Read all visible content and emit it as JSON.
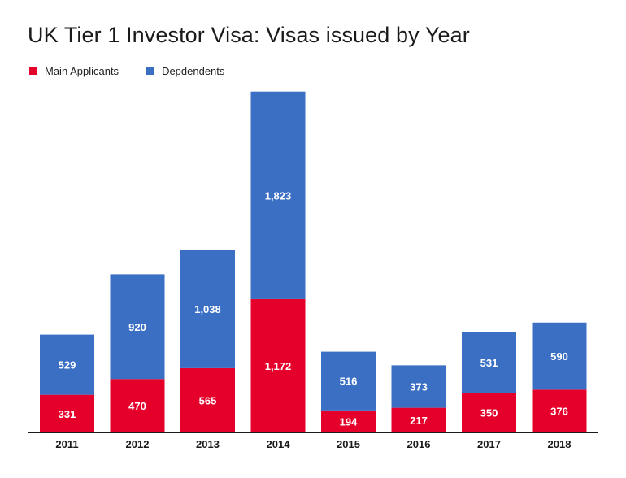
{
  "chart_data": {
    "type": "bar",
    "stacked": true,
    "title": "UK Tier 1 Investor Visa: Visas issued by Year",
    "categories": [
      "2011",
      "2012",
      "2013",
      "2014",
      "2015",
      "2016",
      "2017",
      "2018"
    ],
    "series": [
      {
        "name": "Main Applicants",
        "color": "#e4002b",
        "values": [
          331,
          470,
          565,
          1172,
          194,
          217,
          350,
          376
        ],
        "labels": [
          "331",
          "470",
          "565",
          "1,172",
          "194",
          "217",
          "350",
          "376"
        ]
      },
      {
        "name": "Depdendents",
        "color": "#3a6fc4",
        "values": [
          529,
          920,
          1038,
          1823,
          516,
          373,
          531,
          590
        ],
        "labels": [
          "529",
          "920",
          "1,038",
          "1,823",
          "516",
          "373",
          "531",
          "590"
        ]
      }
    ],
    "ylim": [
      0,
      3000
    ],
    "grid": false,
    "legend_position": "top-left"
  }
}
